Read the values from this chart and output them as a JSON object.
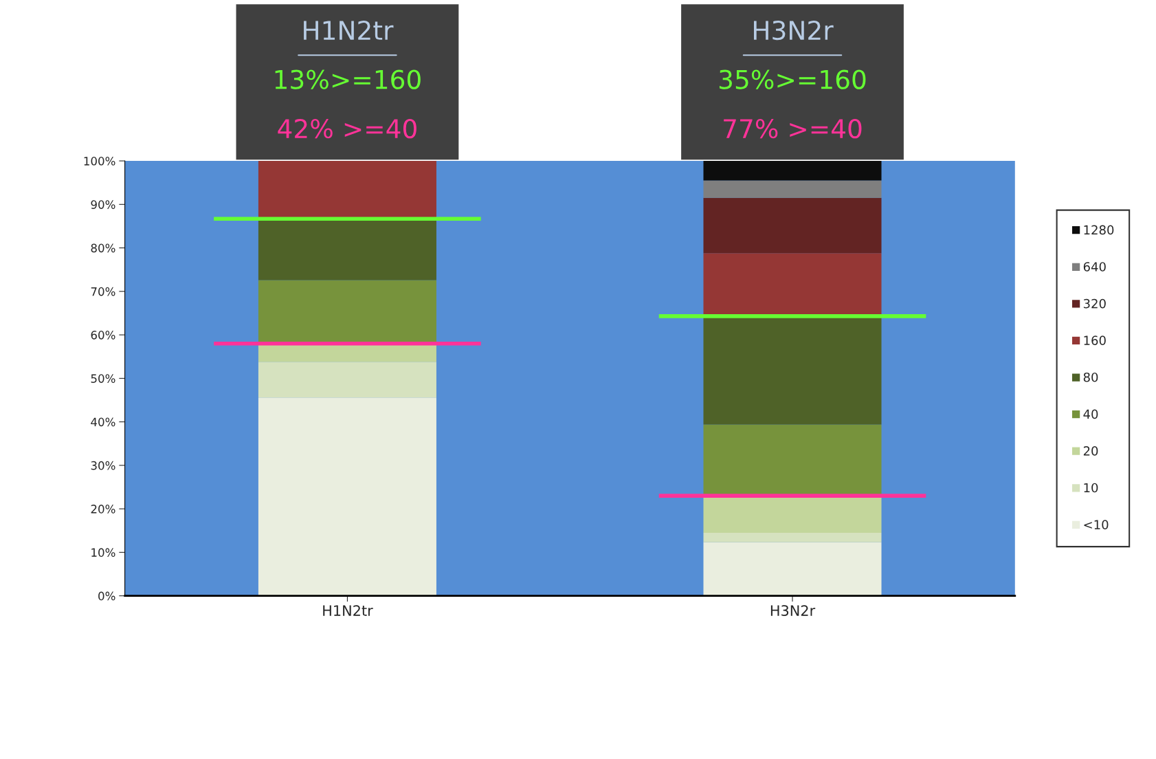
{
  "chart_data": {
    "type": "bar",
    "stacked": true,
    "categories": [
      "H1N2tr",
      "H3N2r"
    ],
    "series": [
      {
        "name": "<10",
        "color": "#eaeedf",
        "values": [
          45.6,
          12.3
        ]
      },
      {
        "name": "10",
        "color": "#d6e2bf",
        "values": [
          8.2,
          2.2
        ]
      },
      {
        "name": "20",
        "color": "#c3d69b",
        "values": [
          4.0,
          8.4
        ]
      },
      {
        "name": "40",
        "color": "#77933c",
        "values": [
          14.8,
          16.5
        ]
      },
      {
        "name": "80",
        "color": "#4f6228",
        "values": [
          14.0,
          24.8
        ]
      },
      {
        "name": "160",
        "color": "#953735",
        "values": [
          13.4,
          14.6
        ]
      },
      {
        "name": "320",
        "color": "#632423",
        "values": [
          null,
          12.7
        ]
      },
      {
        "name": "640",
        "color": "#7f7f7f",
        "values": [
          null,
          4.0
        ]
      },
      {
        "name": "1280",
        "color": "#0d0d0d",
        "values": [
          null,
          4.5
        ]
      }
    ],
    "ref_lines": [
      {
        "axis": "y",
        "value": 86.7,
        "color": "#66ff33"
      },
      {
        "axis": "y",
        "value": 64.3,
        "color": "#66ff33"
      },
      {
        "axis": "y",
        "value": 58.0,
        "color": "#ff3399"
      },
      {
        "axis": "y",
        "value": 23.0,
        "color": "#ff3399"
      }
    ],
    "ylim": [
      0,
      100
    ],
    "yticks": [
      {
        "value": 0,
        "label": "0%"
      },
      {
        "value": 10,
        "label": "10%"
      },
      {
        "value": 20,
        "label": "20%"
      },
      {
        "value": 30,
        "label": "30%"
      },
      {
        "value": 40,
        "label": "40%"
      },
      {
        "value": 50,
        "label": "50%"
      },
      {
        "value": 60,
        "label": "60%"
      },
      {
        "value": 70,
        "label": "70%"
      },
      {
        "value": 80,
        "label": "80%"
      },
      {
        "value": 90,
        "label": "90%"
      },
      {
        "value": 100,
        "label": "100%"
      }
    ],
    "grid": false,
    "legend": "right",
    "annotations": [
      "H1N2tr",
      "13%>=160",
      "42% >=40",
      "H3N2r",
      "35%>=160",
      "77% >=40"
    ]
  }
}
